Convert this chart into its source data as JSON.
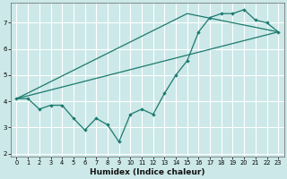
{
  "title": "",
  "xlabel": "Humidex (Indice chaleur)",
  "ylabel": "",
  "background_color": "#cce8e8",
  "grid_color": "#ffffff",
  "line_color": "#1a7a6e",
  "xlim": [
    -0.5,
    23.5
  ],
  "ylim": [
    1.9,
    7.75
  ],
  "xticks": [
    0,
    1,
    2,
    3,
    4,
    5,
    6,
    7,
    8,
    9,
    10,
    11,
    12,
    13,
    14,
    15,
    16,
    17,
    18,
    19,
    20,
    21,
    22,
    23
  ],
  "yticks": [
    2,
    3,
    4,
    5,
    6,
    7
  ],
  "series1_x": [
    0,
    1,
    2,
    3,
    4,
    5,
    6,
    7,
    8,
    9,
    10,
    11,
    12,
    13,
    14,
    15,
    16,
    17,
    18,
    19,
    20,
    21,
    22,
    23
  ],
  "series1_y": [
    4.1,
    4.1,
    3.7,
    3.85,
    3.85,
    3.35,
    2.9,
    3.35,
    3.1,
    2.45,
    3.5,
    3.7,
    3.5,
    4.3,
    5.0,
    5.55,
    6.65,
    7.2,
    7.35,
    7.35,
    7.5,
    7.1,
    7.0,
    6.65
  ],
  "series2_x": [
    0,
    23
  ],
  "series2_y": [
    4.1,
    6.65
  ],
  "series3_x": [
    0,
    15,
    23
  ],
  "series3_y": [
    4.1,
    7.35,
    6.65
  ]
}
